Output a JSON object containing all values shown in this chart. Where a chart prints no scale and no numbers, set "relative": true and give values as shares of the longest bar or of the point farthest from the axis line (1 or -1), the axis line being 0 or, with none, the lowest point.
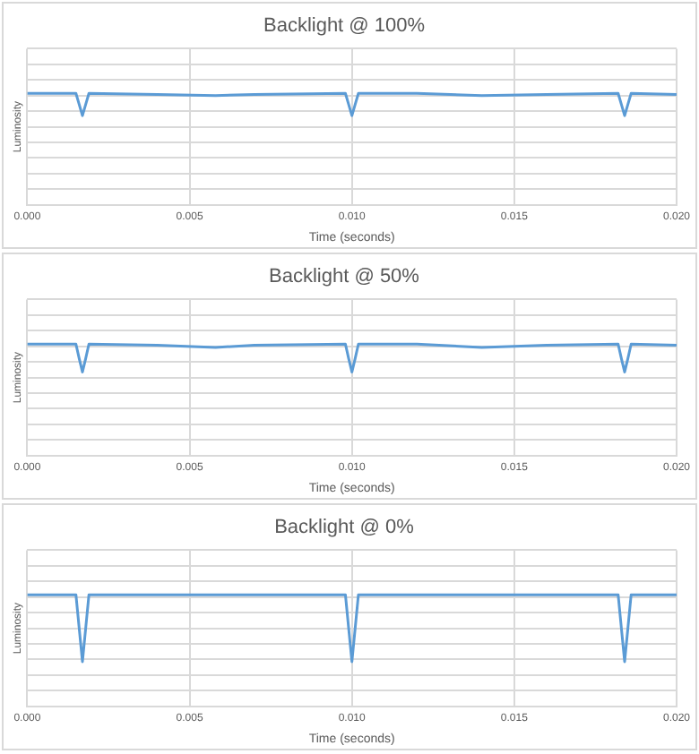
{
  "chart_data": [
    {
      "type": "line",
      "title": "Backlight @ 100%",
      "xlabel": "Time (seconds)",
      "ylabel": "Luminosity",
      "relative": true,
      "grid": true,
      "legend": false,
      "marker": "none",
      "line_style": "solid",
      "xlim": [
        0,
        0.02
      ],
      "xticks": [
        {
          "value": 0,
          "label": "0.000"
        },
        {
          "value": 0.005,
          "label": "0.005"
        },
        {
          "value": 0.01,
          "label": "0.010"
        },
        {
          "value": 0.015,
          "label": "0.015"
        },
        {
          "value": 0.02,
          "label": "0.020"
        }
      ],
      "series": [
        {
          "color": "#5b9bd5",
          "x": [
            0,
            0.0015,
            0.0016,
            0.0017,
            0.0018,
            0.0019,
            0.004,
            0.0058,
            0.007,
            0.0098,
            0.0099,
            0.01,
            0.0101,
            0.0102,
            0.012,
            0.014,
            0.016,
            0.0182,
            0.0183,
            0.0184,
            0.0185,
            0.0186,
            0.02
          ],
          "values": [
            1,
            1,
            0.9,
            0.8,
            0.9,
            1,
            0.99,
            0.98,
            0.99,
            1,
            0.9,
            0.8,
            0.9,
            1,
            1,
            0.98,
            0.99,
            1,
            0.9,
            0.8,
            0.9,
            1,
            0.99
          ]
        }
      ]
    },
    {
      "type": "line",
      "title": "Backlight @ 50%",
      "xlabel": "Time (seconds)",
      "ylabel": "Luminosity",
      "relative": true,
      "grid": true,
      "legend": false,
      "marker": "none",
      "line_style": "solid",
      "xlim": [
        0,
        0.02
      ],
      "xticks": [
        {
          "value": 0,
          "label": "0.000"
        },
        {
          "value": 0.005,
          "label": "0.005"
        },
        {
          "value": 0.01,
          "label": "0.010"
        },
        {
          "value": 0.015,
          "label": "0.015"
        },
        {
          "value": 0.02,
          "label": "0.020"
        }
      ],
      "series": [
        {
          "color": "#5b9bd5",
          "x": [
            0,
            0.0015,
            0.0016,
            0.0017,
            0.0018,
            0.0019,
            0.004,
            0.0058,
            0.007,
            0.0098,
            0.0099,
            0.01,
            0.0101,
            0.0102,
            0.012,
            0.014,
            0.016,
            0.0182,
            0.0183,
            0.0184,
            0.0185,
            0.0186,
            0.02
          ],
          "values": [
            1,
            1,
            0.87,
            0.75,
            0.87,
            1,
            0.99,
            0.97,
            0.99,
            1,
            0.87,
            0.75,
            0.87,
            1,
            1,
            0.97,
            0.99,
            1,
            0.87,
            0.75,
            0.87,
            1,
            0.99
          ]
        }
      ]
    },
    {
      "type": "line",
      "title": "Backlight @ 0%",
      "xlabel": "Time (seconds)",
      "ylabel": "Luminosity",
      "relative": true,
      "grid": true,
      "legend": false,
      "marker": "none",
      "line_style": "solid",
      "xlim": [
        0,
        0.02
      ],
      "xticks": [
        {
          "value": 0,
          "label": "0.000"
        },
        {
          "value": 0.005,
          "label": "0.005"
        },
        {
          "value": 0.01,
          "label": "0.010"
        },
        {
          "value": 0.015,
          "label": "0.015"
        },
        {
          "value": 0.02,
          "label": "0.020"
        }
      ],
      "series": [
        {
          "color": "#5b9bd5",
          "x": [
            0,
            0.0015,
            0.0016,
            0.0017,
            0.0018,
            0.0019,
            0.006,
            0.0098,
            0.0099,
            0.01,
            0.0101,
            0.0102,
            0.014,
            0.0182,
            0.0183,
            0.0184,
            0.0185,
            0.0186,
            0.02
          ],
          "values": [
            1,
            1,
            0.7,
            0.4,
            0.7,
            1,
            1,
            1,
            0.7,
            0.4,
            0.7,
            1,
            1,
            1,
            0.7,
            0.4,
            0.7,
            1,
            1
          ]
        }
      ]
    }
  ]
}
